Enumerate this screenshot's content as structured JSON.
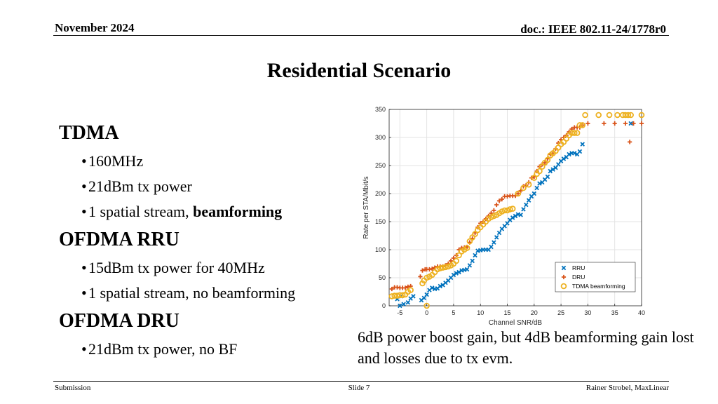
{
  "header": {
    "date": "November 2024",
    "doc": "doc.: IEEE 802.11-24/1778r0"
  },
  "title": "Residential Scenario",
  "bullets": [
    {
      "level": 1,
      "text": "TDMA"
    },
    {
      "level": 2,
      "text": "160MHz"
    },
    {
      "level": 2,
      "text": "21dBm tx power"
    },
    {
      "level": 2,
      "text": "1 spatial stream, ",
      "bold": "beamforming"
    },
    {
      "level": 1,
      "text": "OFDMA RRU"
    },
    {
      "level": 2,
      "text": "15dBm tx power for 40MHz"
    },
    {
      "level": 2,
      "text": "1 spatial stream, no beamforming"
    },
    {
      "level": 1,
      "text": "OFDMA DRU"
    },
    {
      "level": 2,
      "text": "21dBm tx power, no BF"
    }
  ],
  "caption": "6dB power boost gain, but 4dB beamforming gain lost and losses due to tx evm.",
  "footer": {
    "left": "Submission",
    "center": "Slide 7",
    "right": "Rainer Strobel, MaxLinear"
  },
  "chart_data": {
    "type": "scatter",
    "title": "",
    "xlabel": "Channel SNR/dB",
    "ylabel": "Rate per STA/Mbit/s",
    "xlim": [
      -7,
      40
    ],
    "ylim": [
      0,
      350
    ],
    "xticks": [
      -5,
      0,
      5,
      10,
      15,
      20,
      25,
      30,
      35,
      40
    ],
    "yticks": [
      0,
      50,
      100,
      150,
      200,
      250,
      300,
      350
    ],
    "grid": true,
    "legend_position": "bottom-right",
    "series": [
      {
        "name": "RRU",
        "marker": "x",
        "color": "#0072BD",
        "points": [
          [
            -5,
            0
          ],
          [
            -4.3,
            3
          ],
          [
            -3.5,
            6
          ],
          [
            -5.5,
            12
          ],
          [
            -4.8,
            17
          ],
          [
            -3,
            13
          ],
          [
            -2.5,
            17
          ],
          [
            -1,
            10
          ],
          [
            -0.5,
            14
          ],
          [
            0,
            20
          ],
          [
            0.5,
            28
          ],
          [
            1,
            32
          ],
          [
            1.5,
            30
          ],
          [
            2,
            31
          ],
          [
            2.5,
            35
          ],
          [
            3,
            37
          ],
          [
            3.5,
            41
          ],
          [
            4,
            45
          ],
          [
            4.5,
            50
          ],
          [
            5,
            55
          ],
          [
            5.5,
            58
          ],
          [
            6,
            60
          ],
          [
            6.5,
            63
          ],
          [
            7,
            64
          ],
          [
            7.5,
            65
          ],
          [
            8,
            72
          ],
          [
            8.5,
            80
          ],
          [
            9,
            90
          ],
          [
            9.5,
            98
          ],
          [
            10,
            99
          ],
          [
            10.5,
            100
          ],
          [
            11,
            100
          ],
          [
            11.5,
            100
          ],
          [
            12,
            105
          ],
          [
            12.5,
            113
          ],
          [
            13,
            122
          ],
          [
            13.5,
            130
          ],
          [
            14,
            137
          ],
          [
            14.5,
            142
          ],
          [
            15,
            147
          ],
          [
            15.5,
            153
          ],
          [
            16,
            157
          ],
          [
            16.5,
            160
          ],
          [
            17,
            163
          ],
          [
            17.5,
            162
          ],
          [
            18,
            172
          ],
          [
            18.5,
            180
          ],
          [
            19,
            188
          ],
          [
            19.5,
            195
          ],
          [
            20,
            200
          ],
          [
            20.5,
            210
          ],
          [
            21,
            218
          ],
          [
            21.5,
            220
          ],
          [
            22,
            225
          ],
          [
            22.5,
            230
          ],
          [
            23,
            240
          ],
          [
            23.5,
            243
          ],
          [
            24,
            246
          ],
          [
            24.5,
            252
          ],
          [
            25,
            258
          ],
          [
            25.5,
            262
          ],
          [
            26,
            265
          ],
          [
            26.5,
            270
          ],
          [
            27,
            272
          ],
          [
            27.5,
            272
          ],
          [
            28,
            270
          ],
          [
            28.5,
            275
          ],
          [
            29,
            288
          ],
          [
            38,
            325
          ]
        ]
      },
      {
        "name": "DRU",
        "marker": "+",
        "color": "#D95319",
        "points": [
          [
            -6.5,
            30
          ],
          [
            -6,
            33
          ],
          [
            -5.5,
            33
          ],
          [
            -5,
            32
          ],
          [
            -4.5,
            32
          ],
          [
            -4,
            32
          ],
          [
            -3.5,
            34
          ],
          [
            -3,
            35
          ],
          [
            -1.2,
            52
          ],
          [
            -0.8,
            63
          ],
          [
            -0.3,
            65
          ],
          [
            0,
            65
          ],
          [
            0.5,
            65
          ],
          [
            1,
            66
          ],
          [
            1.5,
            68
          ],
          [
            2,
            70
          ],
          [
            2.5,
            70
          ],
          [
            3,
            70
          ],
          [
            3.5,
            72
          ],
          [
            4,
            75
          ],
          [
            4.5,
            80
          ],
          [
            5,
            85
          ],
          [
            5.5,
            90
          ],
          [
            6,
            100
          ],
          [
            6.5,
            103
          ],
          [
            7,
            104
          ],
          [
            7.5,
            105
          ],
          [
            8,
            113
          ],
          [
            8.5,
            120
          ],
          [
            9,
            130
          ],
          [
            9.5,
            140
          ],
          [
            10,
            147
          ],
          [
            10.5,
            150
          ],
          [
            11,
            155
          ],
          [
            11.5,
            160
          ],
          [
            12,
            165
          ],
          [
            12.5,
            170
          ],
          [
            13,
            180
          ],
          [
            13.5,
            187
          ],
          [
            14,
            190
          ],
          [
            14.5,
            195
          ],
          [
            15,
            195
          ],
          [
            15.5,
            196
          ],
          [
            16,
            196
          ],
          [
            16.5,
            196
          ],
          [
            17,
            200
          ],
          [
            17.5,
            205
          ],
          [
            18,
            213
          ],
          [
            18.5,
            215
          ],
          [
            19,
            220
          ],
          [
            19.5,
            228
          ],
          [
            20,
            230
          ],
          [
            20.5,
            240
          ],
          [
            21,
            248
          ],
          [
            21.5,
            252
          ],
          [
            22,
            255
          ],
          [
            22.5,
            262
          ],
          [
            23,
            270
          ],
          [
            23.5,
            272
          ],
          [
            24,
            280
          ],
          [
            24.5,
            290
          ],
          [
            25,
            296
          ],
          [
            25.5,
            300
          ],
          [
            26,
            304
          ],
          [
            26.5,
            310
          ],
          [
            27,
            315
          ],
          [
            27.5,
            318
          ],
          [
            28,
            318
          ],
          [
            28.5,
            318
          ],
          [
            29,
            322
          ],
          [
            30,
            325
          ],
          [
            33,
            325
          ],
          [
            35,
            325
          ],
          [
            37,
            325
          ],
          [
            38.5,
            325
          ],
          [
            40,
            325
          ],
          [
            37.8,
            292
          ]
        ]
      },
      {
        "name": "TDMA beamforming",
        "marker": "o",
        "color": "#EDB120",
        "points": [
          [
            -6.5,
            17
          ],
          [
            -6,
            18
          ],
          [
            -5.5,
            18
          ],
          [
            -5,
            19
          ],
          [
            -4.5,
            19
          ],
          [
            -4,
            20
          ],
          [
            -3.5,
            25
          ],
          [
            -3,
            28
          ],
          [
            0,
            0
          ],
          [
            -0.8,
            40
          ],
          [
            -0.5,
            45
          ],
          [
            0,
            50
          ],
          [
            0.5,
            52
          ],
          [
            1,
            55
          ],
          [
            1.5,
            60
          ],
          [
            2,
            65
          ],
          [
            2.5,
            67
          ],
          [
            3,
            68
          ],
          [
            3.5,
            69
          ],
          [
            4,
            70
          ],
          [
            4.5,
            72
          ],
          [
            5,
            75
          ],
          [
            5.5,
            80
          ],
          [
            6,
            90
          ],
          [
            6.5,
            97
          ],
          [
            7,
            100
          ],
          [
            7.5,
            103
          ],
          [
            8,
            115
          ],
          [
            8.5,
            122
          ],
          [
            9,
            128
          ],
          [
            9.5,
            135
          ],
          [
            10,
            140
          ],
          [
            10.5,
            145
          ],
          [
            11,
            150
          ],
          [
            11.5,
            155
          ],
          [
            12,
            158
          ],
          [
            12.5,
            160
          ],
          [
            13,
            162
          ],
          [
            13.5,
            165
          ],
          [
            14,
            168
          ],
          [
            14.5,
            170
          ],
          [
            15,
            170
          ],
          [
            15.5,
            172
          ],
          [
            16,
            173
          ],
          [
            17,
            200
          ],
          [
            18,
            210
          ],
          [
            19,
            216
          ],
          [
            20,
            228
          ],
          [
            20.5,
            235
          ],
          [
            21,
            240
          ],
          [
            21.5,
            248
          ],
          [
            22,
            255
          ],
          [
            22.5,
            260
          ],
          [
            23,
            268
          ],
          [
            23.5,
            272
          ],
          [
            24,
            276
          ],
          [
            24.5,
            282
          ],
          [
            25,
            288
          ],
          [
            25.5,
            292
          ],
          [
            26,
            298
          ],
          [
            26.5,
            304
          ],
          [
            27,
            308
          ],
          [
            27.5,
            308
          ],
          [
            28,
            308
          ],
          [
            28.5,
            322
          ],
          [
            29,
            322
          ],
          [
            29.5,
            340
          ],
          [
            32,
            340
          ],
          [
            34,
            340
          ],
          [
            35.5,
            340
          ],
          [
            36.5,
            340
          ],
          [
            37,
            340
          ],
          [
            37.5,
            340
          ],
          [
            38,
            340
          ],
          [
            40,
            340
          ]
        ]
      }
    ]
  }
}
